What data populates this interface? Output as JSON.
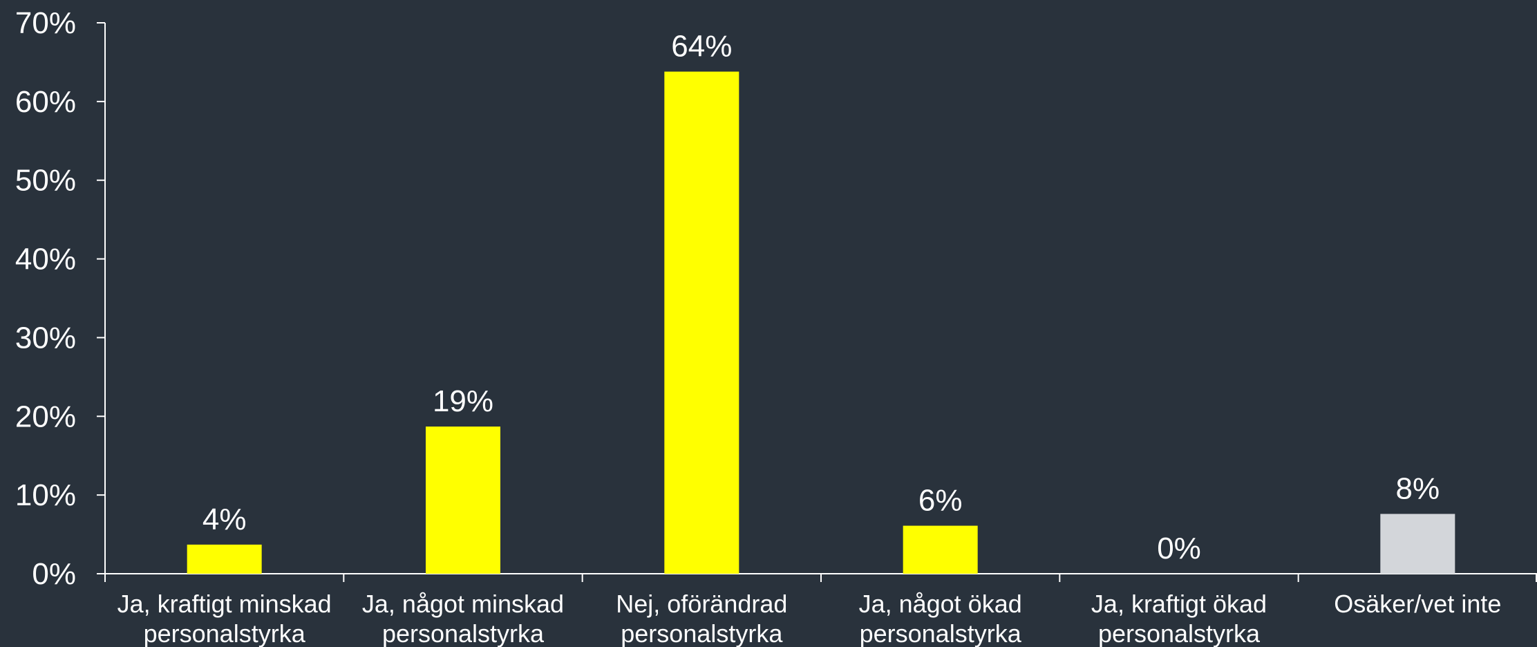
{
  "chart_data": {
    "type": "bar",
    "categories": [
      [
        "Ja, kraftigt minskad",
        "personalstyrka"
      ],
      [
        "Ja, något minskad",
        "personalstyrka"
      ],
      [
        "Nej, oförändrad",
        "personalstyrka"
      ],
      [
        "Ja, något ökad",
        "personalstyrka"
      ],
      [
        "Ja, kraftigt ökad",
        "personalstyrka"
      ],
      [
        "Osäker/vet inte"
      ]
    ],
    "values": [
      0.037,
      0.187,
      0.638,
      0.061,
      0.0,
      0.076
    ],
    "value_labels": [
      "4%",
      "19%",
      "64%",
      "6%",
      "0%",
      "8%"
    ],
    "bar_colors": [
      "#ffff00",
      "#ffff00",
      "#ffff00",
      "#ffff00",
      "#ffff00",
      "#d3d6da"
    ],
    "ylim": [
      0,
      0.7
    ],
    "yticks": [
      0,
      0.1,
      0.2,
      0.3,
      0.4,
      0.5,
      0.6,
      0.7
    ],
    "ytick_labels": [
      "0%",
      "10%",
      "20%",
      "30%",
      "40%",
      "50%",
      "60%",
      "70%"
    ],
    "title": "",
    "xlabel": "",
    "ylabel": "",
    "grid": false,
    "legend": "none",
    "background": "#29323c",
    "text_color": "#ffffff"
  }
}
